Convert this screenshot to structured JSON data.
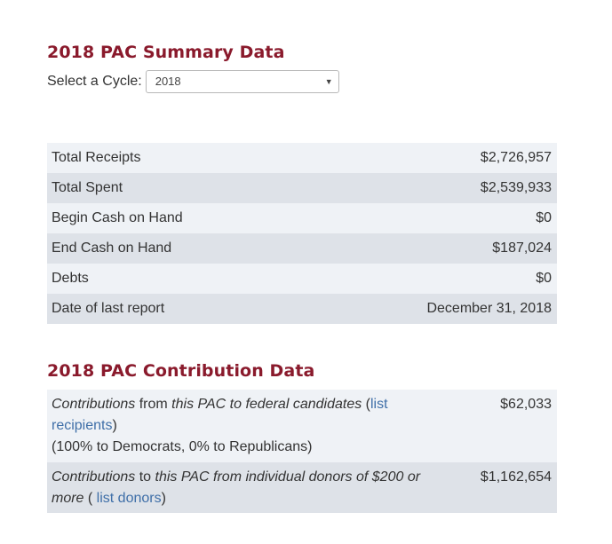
{
  "summary": {
    "title": "2018 PAC Summary Data",
    "cycle_label": "Select a Cycle:",
    "cycle_selected": "2018",
    "rows": [
      {
        "label": "Total Receipts",
        "value": "$2,726,957"
      },
      {
        "label": "Total Spent",
        "value": "$2,539,933"
      },
      {
        "label": "Begin Cash on Hand",
        "value": "$0"
      },
      {
        "label": "End Cash on Hand",
        "value": "$187,024"
      },
      {
        "label": "Debts",
        "value": "$0"
      },
      {
        "label": "Date of last report",
        "value": "December 31, 2018"
      }
    ]
  },
  "contributions": {
    "title": "2018 PAC Contribution Data",
    "row1": {
      "part1": "Contributions",
      "part2": " from ",
      "part3": "this PAC to federal candidates",
      "open_paren": " (",
      "link": "list recipients",
      "close_paren": ")",
      "split": "(100% to Democrats, 0% to Republicans)",
      "value": "$62,033"
    },
    "row2": {
      "part1": "Contributions",
      "part2": " to ",
      "part3": "this PAC from individual donors of $200 or more",
      "open_paren": " ( ",
      "link": "list donors",
      "close_paren": ")",
      "value": "$1,162,654"
    }
  },
  "icons": {
    "dropdown_caret": "chevron-down-icon"
  },
  "colors": {
    "heading": "#8a1a2c",
    "link": "#3f6fa8",
    "row_light": "#eff2f6",
    "row_dark": "#dee2e8"
  }
}
